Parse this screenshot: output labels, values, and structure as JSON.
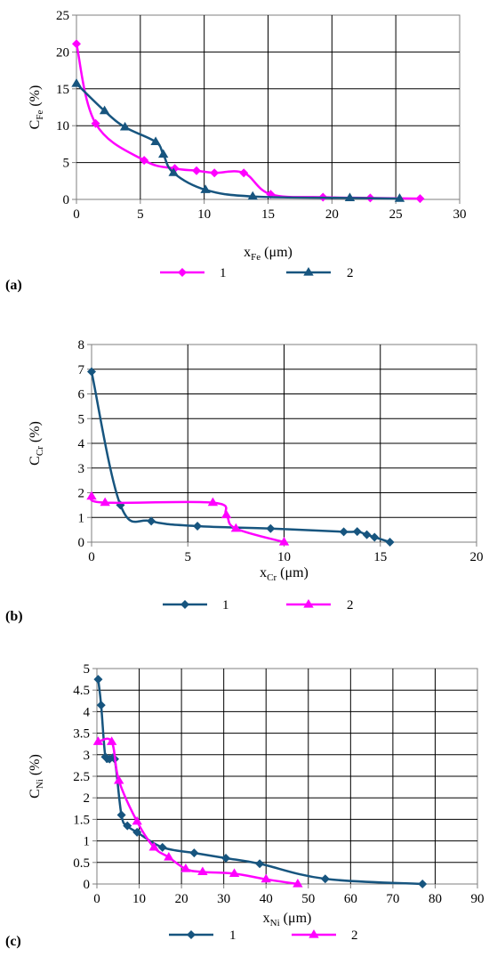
{
  "panels": [
    {
      "label": "(a)",
      "chart_data": {
        "type": "line",
        "ylabel": {
          "main": "C",
          "sub": "Fe",
          "unit": " (%)"
        },
        "xlabel": {
          "main": "x",
          "sub": "Fe",
          "unit": " (μm)"
        },
        "xlim": [
          0,
          30
        ],
        "xticks": [
          0,
          5,
          10,
          15,
          20,
          25,
          30
        ],
        "ylim": [
          0,
          25
        ],
        "yticks": [
          0,
          5,
          10,
          15,
          20,
          25
        ],
        "grid": true,
        "legend_position": "bottom",
        "series": [
          {
            "name": "1",
            "color": "#ff00ff",
            "marker": "diamond",
            "x": [
              0,
              1.5,
              5.3,
              7.7,
              9.4,
              10.8,
              13.1,
              15.2,
              19.3,
              23.0,
              26.9
            ],
            "y": [
              21.1,
              10.3,
              5.3,
              4.2,
              3.9,
              3.6,
              3.6,
              0.7,
              0.3,
              0.2,
              0.1
            ]
          },
          {
            "name": "2",
            "color": "#17557f",
            "marker": "triangle",
            "x": [
              0,
              2.2,
              3.8,
              6.2,
              6.8,
              7.6,
              10.1,
              13.8,
              21.4,
              25.3
            ],
            "y": [
              15.7,
              12.0,
              9.8,
              7.8,
              6.1,
              3.6,
              1.3,
              0.4,
              0.2,
              0.1
            ]
          }
        ]
      }
    },
    {
      "label": "(b)",
      "chart_data": {
        "type": "line",
        "ylabel": {
          "main": "C",
          "sub": "Cr",
          "unit": "  (%)"
        },
        "xlabel": {
          "main": "x",
          "sub": "Cr",
          "unit": " (μm)"
        },
        "xlim": [
          0,
          20
        ],
        "xticks": [
          0,
          5,
          10,
          15,
          20
        ],
        "ylim": [
          0,
          8
        ],
        "yticks": [
          0,
          1,
          2,
          3,
          4,
          5,
          6,
          7,
          8
        ],
        "grid": true,
        "legend_position": "bottom",
        "series": [
          {
            "name": "1",
            "color": "#17557f",
            "marker": "diamond",
            "x": [
              0,
              1.5,
              3.1,
              5.5,
              9.3,
              13.1,
              13.8,
              14.3,
              14.7,
              15.5
            ],
            "y": [
              6.9,
              1.5,
              0.85,
              0.65,
              0.55,
              0.42,
              0.43,
              0.3,
              0.2,
              0.0
            ]
          },
          {
            "name": "2",
            "color": "#ff00ff",
            "marker": "triangle",
            "x": [
              0,
              0.7,
              6.3,
              7.0,
              7.5,
              10.0
            ],
            "y": [
              1.85,
              1.6,
              1.6,
              1.1,
              0.55,
              0.0
            ]
          }
        ]
      }
    },
    {
      "label": "(c)",
      "chart_data": {
        "type": "line",
        "ylabel": {
          "main": "C",
          "sub": "Ni",
          "unit": "  (%)"
        },
        "xlabel": {
          "main": "x",
          "sub": "Ni",
          "unit": " (μm)"
        },
        "xlim": [
          0,
          90
        ],
        "xticks": [
          0,
          10,
          20,
          30,
          40,
          50,
          60,
          70,
          80,
          90
        ],
        "ylim": [
          0,
          5
        ],
        "yticks": [
          "0",
          "0.5",
          "1",
          "1.5",
          "2",
          "2.5",
          "3",
          "3.5",
          "4",
          "4.5",
          "5"
        ],
        "grid": true,
        "legend_position": "bottom",
        "series": [
          {
            "name": "1",
            "color": "#17557f",
            "marker": "diamond",
            "x": [
              0.3,
              1.0,
              2.0,
              3.0,
              4.2,
              5.8,
              7.2,
              9.5,
              15.5,
              23,
              30.5,
              38.5,
              54,
              77
            ],
            "y": [
              4.75,
              4.15,
              2.95,
              2.9,
              2.9,
              1.6,
              1.35,
              1.2,
              0.85,
              0.72,
              0.6,
              0.47,
              0.12,
              0.0
            ]
          },
          {
            "name": "2",
            "color": "#ff00ff",
            "marker": "triangle",
            "x": [
              0.3,
              3.5,
              5.2,
              9.5,
              13.5,
              17.0,
              21.0,
              25.0,
              32.5,
              40.0,
              47.5
            ],
            "y": [
              3.3,
              3.3,
              2.4,
              1.45,
              0.85,
              0.62,
              0.35,
              0.28,
              0.24,
              0.11,
              0.0
            ]
          }
        ]
      }
    }
  ]
}
